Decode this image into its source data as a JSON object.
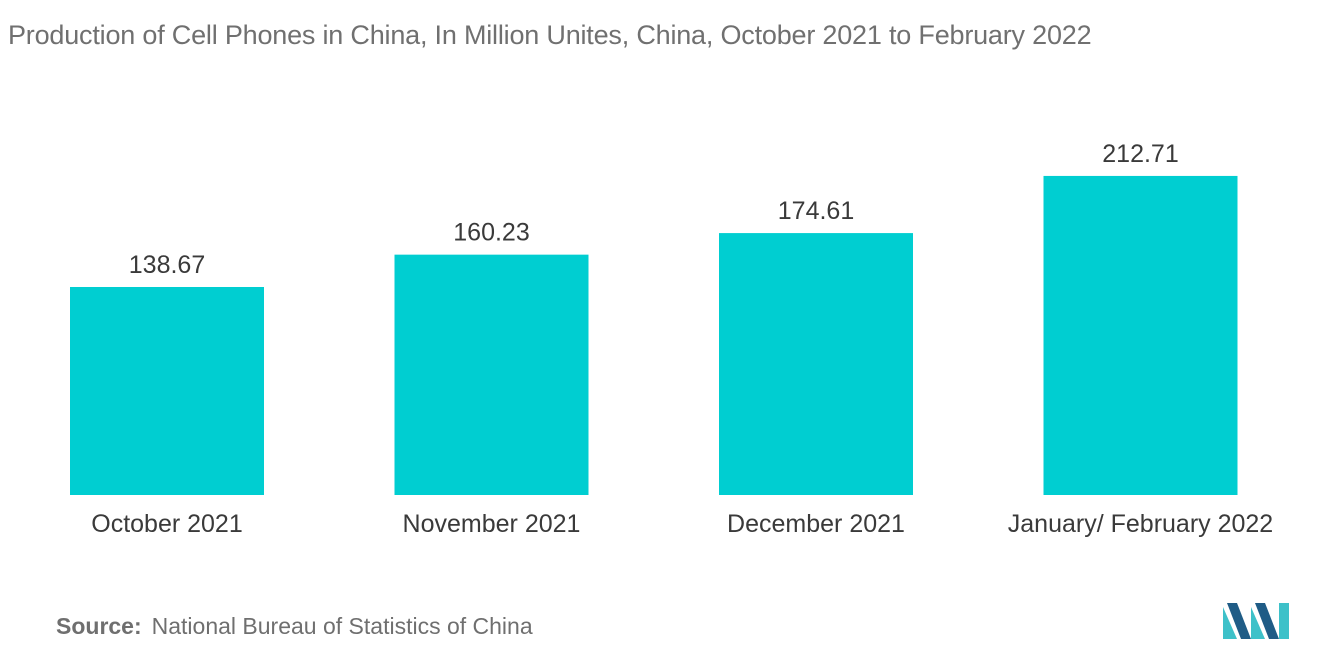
{
  "title": "Production of Cell Phones in China, In Million Unites, China, October 2021 to February 2022",
  "source": {
    "label": "Source:",
    "text": "National Bureau of Statistics of China"
  },
  "colors": {
    "bar": "#00ced1",
    "text": "#3a3a3a",
    "muted": "#707070",
    "logo_dark": "#1f5c86",
    "logo_light": "#3ec1c9"
  },
  "logo": {
    "icon": "mordor-intelligence-logo-icon"
  },
  "chart_data": {
    "type": "bar",
    "categories": [
      "October 2021",
      "November 2021",
      "December 2021",
      "January/ February 2022"
    ],
    "values": [
      138.67,
      160.23,
      174.61,
      212.71
    ],
    "title": "Production of Cell Phones in China, In Million Unites, China, October 2021 to February 2022",
    "xlabel": "",
    "ylabel": "",
    "ylim": [
      0,
      240
    ],
    "grid": false,
    "legend": "none",
    "value_labels": [
      "138.67",
      "160.23",
      "174.61",
      "212.71"
    ]
  }
}
